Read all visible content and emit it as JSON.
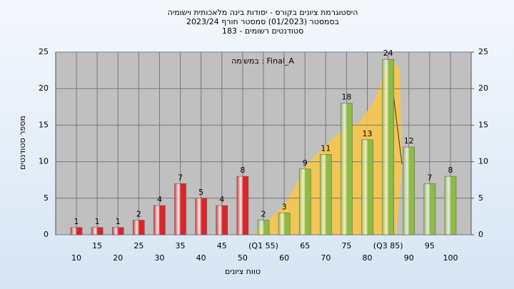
{
  "chart_data": {
    "type": "bar",
    "title": [
      "היסטוגרמת ציונים בקורס - יסודות בינה מלאכותית וישומיה",
      "בסמסטר  (01/2023)  סמסטר חורף 2023/24",
      "סטודנטים רשומים - 183"
    ],
    "annotation": "במשימה : Final_A",
    "y_label": "מספר סטודנטים",
    "x_label": "טווח ציונים",
    "categories": [
      "10",
      "15",
      "20",
      "25",
      "30",
      "35",
      "40",
      "45",
      "50",
      "(Q1 55)",
      "60",
      "65",
      "70",
      "75",
      "80",
      "(Q3 85)",
      "90",
      "95",
      "100"
    ],
    "values": [
      1,
      1,
      1,
      2,
      4,
      7,
      5,
      4,
      8,
      2,
      3,
      9,
      11,
      18,
      13,
      24,
      12,
      7,
      8
    ],
    "colors": [
      "#d9262b",
      "#d9262b",
      "#d9262b",
      "#d9262b",
      "#d9262b",
      "#d9262b",
      "#d9262b",
      "#d9262b",
      "#d9262b",
      "#8dbb45",
      "#8dbb45",
      "#8dbb45",
      "#8dbb45",
      "#8dbb45",
      "#8dbb45",
      "#8dbb45",
      "#8dbb45",
      "#8dbb45",
      "#8dbb45"
    ],
    "ylim": [
      0,
      25
    ],
    "yticks": [
      0,
      5,
      10,
      15,
      20,
      25
    ],
    "y2lim": [
      0,
      25
    ],
    "y2ticks": [
      0,
      5,
      10,
      15,
      20,
      25
    ],
    "grid": true
  }
}
